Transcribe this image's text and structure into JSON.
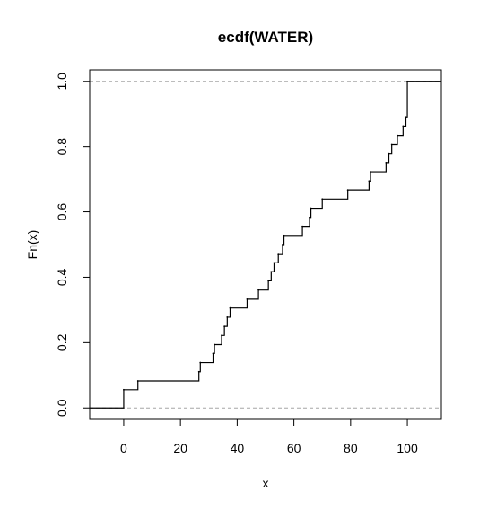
{
  "chart_data": {
    "type": "line",
    "title": "ecdf(WATER)",
    "xlabel": "x",
    "ylabel": "Fn(x)",
    "xlim": [
      -12,
      112
    ],
    "ylim": [
      -0.035,
      1.035
    ],
    "xticks": [
      0,
      20,
      40,
      60,
      80,
      100
    ],
    "yticks": [
      0.0,
      0.2,
      0.4,
      0.6,
      0.8,
      1.0
    ],
    "ytick_labels": [
      "0.0",
      "0.2",
      "0.4",
      "0.6",
      "0.8",
      "1.0"
    ],
    "reference_lines_y": [
      0,
      1
    ],
    "series": [
      {
        "x": [
          0,
          5,
          26.5,
          27,
          31.5,
          32,
          34.5,
          35.5,
          36.5,
          37.5,
          43.5,
          47.5,
          51,
          52,
          53,
          54.5,
          56,
          56.5,
          63,
          65.5,
          66,
          70,
          79,
          86.5,
          87,
          92.5,
          93.5,
          94.5,
          96.5,
          98.5,
          99.5,
          100
        ],
        "y": [
          0.056,
          0.083,
          0.111,
          0.139,
          0.167,
          0.194,
          0.222,
          0.25,
          0.278,
          0.306,
          0.333,
          0.361,
          0.389,
          0.417,
          0.444,
          0.472,
          0.5,
          0.528,
          0.556,
          0.583,
          0.611,
          0.639,
          0.667,
          0.694,
          0.722,
          0.75,
          0.778,
          0.806,
          0.833,
          0.861,
          0.889,
          1.0
        ]
      }
    ]
  }
}
